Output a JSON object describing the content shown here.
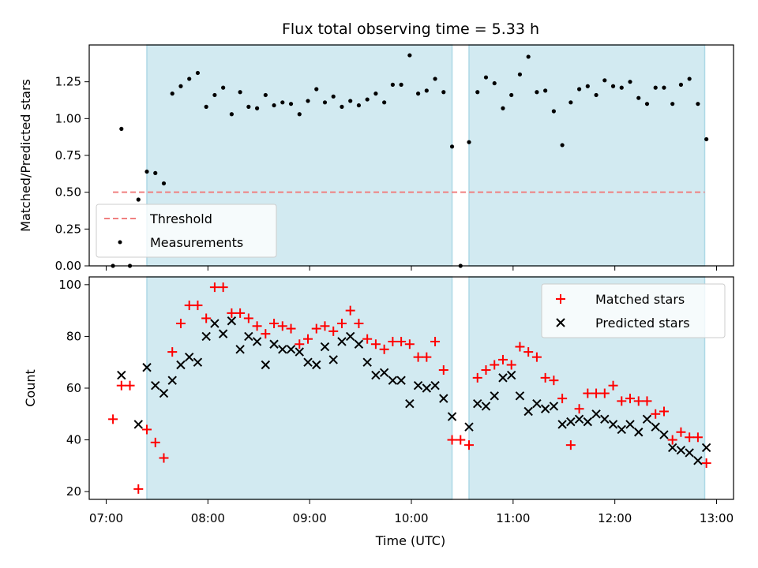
{
  "chart_data": [
    {
      "type": "scatter",
      "title": "Flux total observing time = 5.33 h",
      "xlabel": "",
      "ylabel": "Matched/Predicted stars",
      "xlim": [
        "06:50",
        "13:10"
      ],
      "ylim": [
        0,
        1.5
      ],
      "yticks": [
        "0.00",
        "0.25",
        "0.50",
        "0.75",
        "1.00",
        "1.25"
      ],
      "shaded_intervals": [
        [
          "07:24",
          "10:24"
        ],
        [
          "10:34",
          "12:53"
        ]
      ],
      "shade_color": "#add8e6",
      "threshold": {
        "name": "Threshold",
        "value": 0.5,
        "from": "07:04",
        "to": "12:53",
        "color": "#f08080"
      },
      "legend": {
        "position": "lower left",
        "entries": [
          "Threshold",
          "Measurements"
        ]
      },
      "series": [
        {
          "name": "Measurements",
          "color": "#000000",
          "marker": "dot",
          "x": [
            "07:04",
            "07:09",
            "07:14",
            "07:19",
            "07:24",
            "07:29",
            "07:34",
            "07:39",
            "07:44",
            "07:49",
            "07:54",
            "07:59",
            "08:04",
            "08:09",
            "08:14",
            "08:19",
            "08:24",
            "08:29",
            "08:34",
            "08:39",
            "08:44",
            "08:49",
            "08:54",
            "08:59",
            "09:04",
            "09:09",
            "09:14",
            "09:19",
            "09:24",
            "09:29",
            "09:34",
            "09:39",
            "09:44",
            "09:49",
            "09:54",
            "09:59",
            "10:04",
            "10:09",
            "10:14",
            "10:19",
            "10:24",
            "10:29",
            "10:34",
            "10:39",
            "10:44",
            "10:49",
            "10:54",
            "10:59",
            "11:04",
            "11:09",
            "11:14",
            "11:19",
            "11:24",
            "11:29",
            "11:34",
            "11:39",
            "11:44",
            "11:49",
            "11:54",
            "11:59",
            "12:04",
            "12:09",
            "12:14",
            "12:19",
            "12:24",
            "12:29",
            "12:34",
            "12:39",
            "12:44",
            "12:49",
            "12:54"
          ],
          "y": [
            0.0,
            0.93,
            0.0,
            0.45,
            0.64,
            0.63,
            0.56,
            1.17,
            1.22,
            1.27,
            1.31,
            1.08,
            1.16,
            1.21,
            1.03,
            1.18,
            1.08,
            1.07,
            1.16,
            1.09,
            1.11,
            1.1,
            1.03,
            1.12,
            1.2,
            1.11,
            1.15,
            1.08,
            1.12,
            1.09,
            1.13,
            1.17,
            1.11,
            1.23,
            1.23,
            1.43,
            1.17,
            1.19,
            1.27,
            1.18,
            0.81,
            0.0,
            0.84,
            1.18,
            1.28,
            1.24,
            1.07,
            1.16,
            1.3,
            1.42,
            1.18,
            1.19,
            1.05,
            0.82,
            1.11,
            1.2,
            1.22,
            1.16,
            1.26,
            1.22,
            1.21,
            1.25,
            1.14,
            1.1,
            1.21,
            1.21,
            1.1,
            1.23,
            1.27,
            1.1,
            0.86
          ]
        }
      ]
    },
    {
      "type": "scatter",
      "title": "",
      "xlabel": "Time (UTC)",
      "ylabel": "Count",
      "xlim": [
        "06:50",
        "13:10"
      ],
      "ylim": [
        17,
        103
      ],
      "xticks": [
        "07:00",
        "08:00",
        "09:00",
        "10:00",
        "11:00",
        "12:00",
        "13:00"
      ],
      "yticks": [
        "20",
        "40",
        "60",
        "80",
        "100"
      ],
      "shaded_intervals": [
        [
          "07:24",
          "10:24"
        ],
        [
          "10:34",
          "12:53"
        ]
      ],
      "shade_color": "#add8e6",
      "legend": {
        "position": "upper right",
        "entries": [
          "Matched stars",
          "Predicted stars"
        ]
      },
      "series": [
        {
          "name": "Matched stars",
          "color": "#ff0000",
          "marker": "plus",
          "x": [
            "07:04",
            "07:09",
            "07:14",
            "07:19",
            "07:24",
            "07:29",
            "07:34",
            "07:39",
            "07:44",
            "07:49",
            "07:54",
            "07:59",
            "08:04",
            "08:09",
            "08:14",
            "08:19",
            "08:24",
            "08:29",
            "08:34",
            "08:39",
            "08:44",
            "08:49",
            "08:54",
            "08:59",
            "09:04",
            "09:09",
            "09:14",
            "09:19",
            "09:24",
            "09:29",
            "09:34",
            "09:39",
            "09:44",
            "09:49",
            "09:54",
            "09:59",
            "10:04",
            "10:09",
            "10:14",
            "10:19",
            "10:24",
            "10:29",
            "10:34",
            "10:39",
            "10:44",
            "10:49",
            "10:54",
            "10:59",
            "11:04",
            "11:09",
            "11:14",
            "11:19",
            "11:24",
            "11:29",
            "11:34",
            "11:39",
            "11:44",
            "11:49",
            "11:54",
            "11:59",
            "12:04",
            "12:09",
            "12:14",
            "12:19",
            "12:24",
            "12:29",
            "12:34",
            "12:39",
            "12:44",
            "12:49",
            "12:54"
          ],
          "y": [
            48,
            61,
            61,
            21,
            44,
            39,
            33,
            74,
            85,
            92,
            92,
            87,
            99,
            99,
            89,
            89,
            87,
            84,
            81,
            85,
            84,
            83,
            77,
            79,
            83,
            84,
            82,
            85,
            90,
            85,
            79,
            77,
            75,
            78,
            78,
            77,
            72,
            72,
            78,
            67,
            40,
            40,
            38,
            64,
            67,
            69,
            71,
            69,
            76,
            74,
            72,
            64,
            63,
            56,
            38,
            52,
            58,
            58,
            58,
            61,
            55,
            56,
            55,
            55,
            50,
            51,
            40,
            43,
            41,
            41,
            31
          ]
        },
        {
          "name": "Predicted stars",
          "color": "#000000",
          "marker": "x",
          "x": [
            "07:09",
            "07:19",
            "07:24",
            "07:29",
            "07:34",
            "07:39",
            "07:44",
            "07:49",
            "07:54",
            "07:59",
            "08:04",
            "08:09",
            "08:14",
            "08:19",
            "08:24",
            "08:29",
            "08:34",
            "08:39",
            "08:44",
            "08:49",
            "08:54",
            "08:59",
            "09:04",
            "09:09",
            "09:14",
            "09:19",
            "09:24",
            "09:29",
            "09:34",
            "09:39",
            "09:44",
            "09:49",
            "09:54",
            "09:59",
            "10:04",
            "10:09",
            "10:14",
            "10:19",
            "10:24",
            "10:34",
            "10:39",
            "10:44",
            "10:49",
            "10:54",
            "10:59",
            "11:04",
            "11:09",
            "11:14",
            "11:19",
            "11:24",
            "11:29",
            "11:34",
            "11:39",
            "11:44",
            "11:49",
            "11:54",
            "11:59",
            "12:04",
            "12:09",
            "12:14",
            "12:19",
            "12:24",
            "12:29",
            "12:34",
            "12:39",
            "12:44",
            "12:49",
            "12:54"
          ],
          "y": [
            65,
            46,
            68,
            61,
            58,
            63,
            69,
            72,
            70,
            80,
            85,
            81,
            86,
            75,
            80,
            78,
            69,
            77,
            75,
            75,
            74,
            70,
            69,
            76,
            71,
            78,
            80,
            77,
            70,
            65,
            66,
            63,
            63,
            54,
            61,
            60,
            61,
            56,
            49,
            45,
            54,
            53,
            57,
            64,
            65,
            57,
            51,
            54,
            52,
            53,
            46,
            47,
            48,
            47,
            50,
            48,
            46,
            44,
            46,
            43,
            48,
            45,
            42,
            37,
            36,
            35,
            32,
            37
          ]
        }
      ]
    }
  ]
}
